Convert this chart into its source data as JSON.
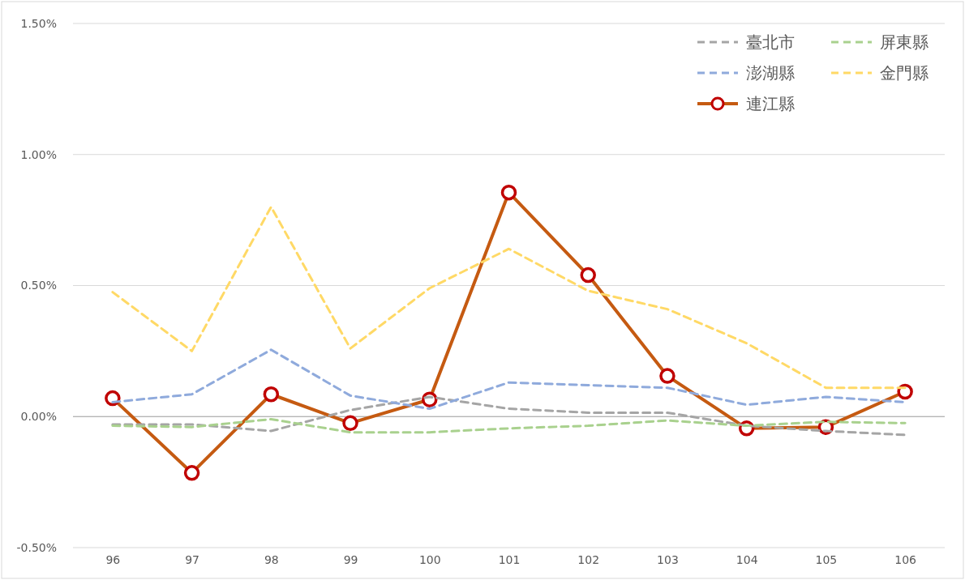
{
  "chart_data": {
    "type": "line",
    "categories": [
      "96",
      "97",
      "98",
      "99",
      "100",
      "101",
      "102",
      "103",
      "104",
      "105",
      "106"
    ],
    "series": [
      {
        "name": "臺北市",
        "color": "#a5a5a5",
        "line_style": "dashed",
        "marker": "none",
        "values": [
          -0.03,
          -0.03,
          -0.055,
          0.025,
          0.075,
          0.03,
          0.015,
          0.015,
          -0.035,
          -0.055,
          -0.07
        ]
      },
      {
        "name": "屏東縣",
        "color": "#a9d18e",
        "line_style": "dashed",
        "marker": "none",
        "values": [
          -0.035,
          -0.04,
          -0.01,
          -0.06,
          -0.06,
          -0.045,
          -0.035,
          -0.015,
          -0.035,
          -0.02,
          -0.025
        ]
      },
      {
        "name": "澎湖縣",
        "color": "#8faadc",
        "line_style": "dashed",
        "marker": "none",
        "values": [
          0.055,
          0.085,
          0.255,
          0.08,
          0.03,
          0.13,
          0.12,
          0.11,
          0.045,
          0.075,
          0.055
        ]
      },
      {
        "name": "金門縣",
        "color": "#ffd966",
        "line_style": "dashed",
        "marker": "none",
        "values": [
          0.475,
          0.25,
          0.8,
          0.26,
          0.49,
          0.64,
          0.48,
          0.41,
          0.28,
          0.11,
          0.11
        ]
      },
      {
        "name": "連江縣",
        "color": "#c55a11",
        "line_style": "solid",
        "marker": "circle",
        "values": [
          0.07,
          -0.215,
          0.085,
          -0.025,
          0.065,
          0.855,
          0.54,
          0.155,
          -0.045,
          -0.04,
          0.095
        ]
      }
    ],
    "ylim": [
      -0.5,
      1.5
    ],
    "yticks": [
      {
        "value": -0.5,
        "label": "-0.50%"
      },
      {
        "value": 0,
        "label": "0.00%"
      },
      {
        "value": 0.5,
        "label": "0.50%"
      },
      {
        "value": 1,
        "label": "1.00%"
      },
      {
        "value": 1.5,
        "label": "1.50%"
      }
    ],
    "grid": "y",
    "legend": "top right"
  }
}
